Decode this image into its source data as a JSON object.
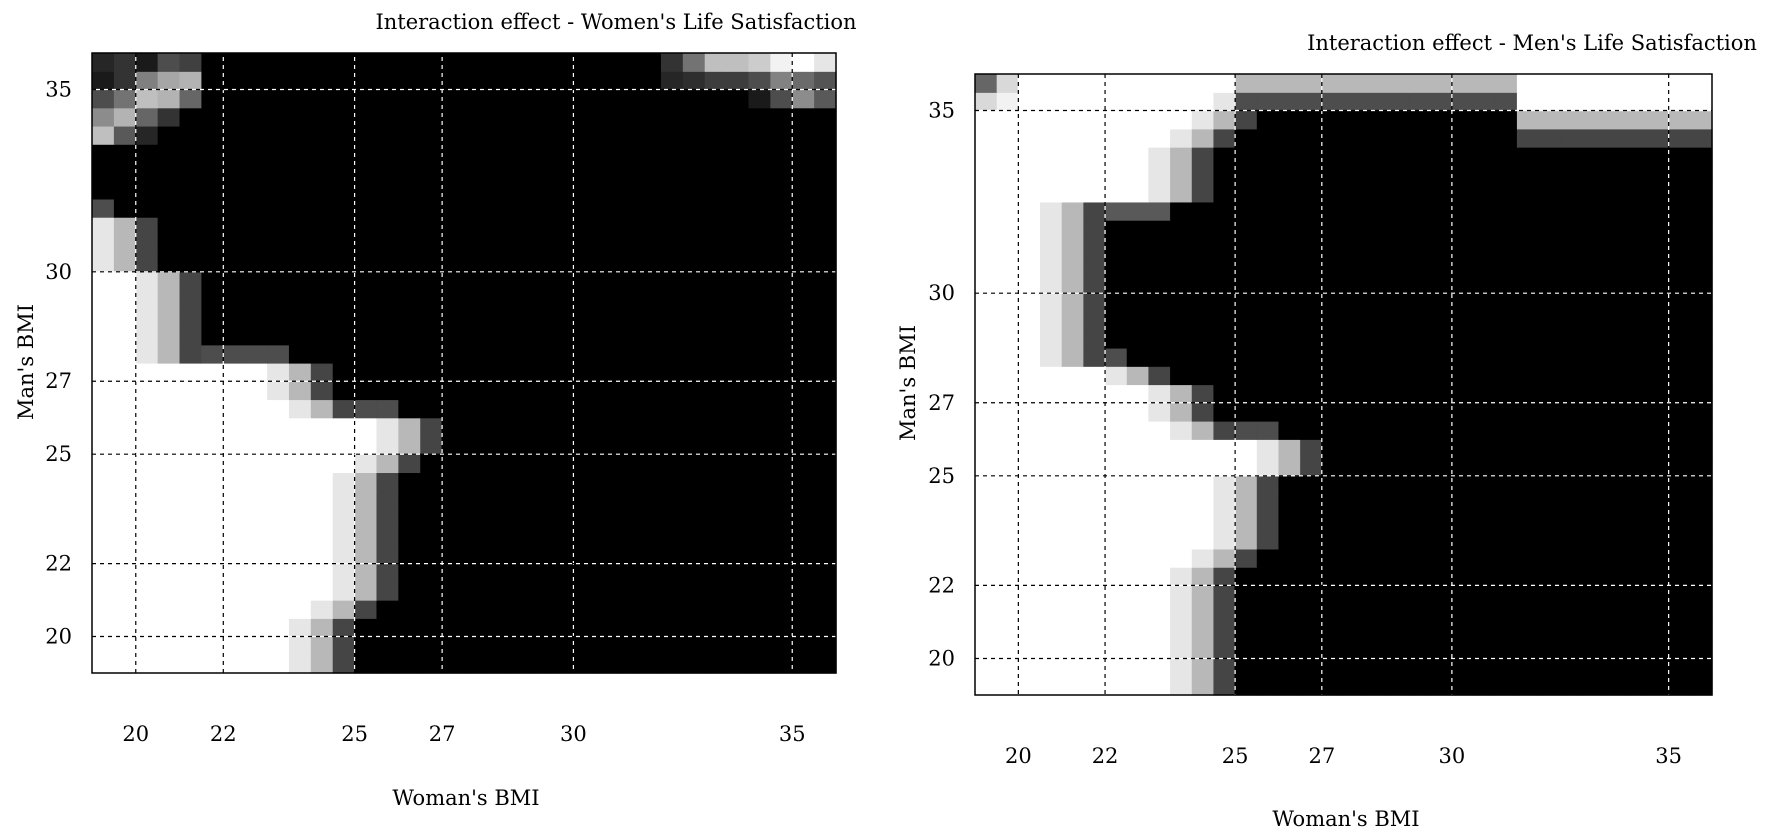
{
  "chart_data": [
    {
      "type": "heatmap",
      "title": "Interaction effect - Women's Life Satisfaction",
      "xlabel": "Woman's BMI",
      "ylabel": "Man's BMI",
      "xlim": [
        19,
        36
      ],
      "ylim": [
        19,
        36
      ],
      "xticks": [
        20,
        22,
        25,
        27,
        30,
        35
      ],
      "yticks": [
        20,
        22,
        25,
        27,
        30,
        35
      ],
      "grid": true,
      "value_scale": "grayscale 0 (black) to 1 (white)",
      "cell_size": 0.5,
      "x_cells": 34,
      "y_cells": 34,
      "white_region_boundary": [
        {
          "y_from": 19.0,
          "y_to": 20.5,
          "x_max": 24.0
        },
        {
          "y_from": 20.5,
          "y_to": 21.0,
          "x_max": 24.5
        },
        {
          "y_from": 21.0,
          "y_to": 24.5,
          "x_max": 25.0
        },
        {
          "y_from": 24.5,
          "y_to": 25.0,
          "x_max": 25.5
        },
        {
          "y_from": 25.0,
          "y_to": 26.0,
          "x_max": 26.0
        },
        {
          "y_from": 26.0,
          "y_to": 26.5,
          "x_max": 24.0
        },
        {
          "y_from": 26.5,
          "y_to": 27.5,
          "x_max": 23.5
        },
        {
          "y_from": 27.5,
          "y_to": 30.0,
          "x_max": 20.5
        },
        {
          "y_from": 30.0,
          "y_to": 31.5,
          "x_max": 19.5
        },
        {
          "y_from": 31.5,
          "y_to": 34.0,
          "x_max": 19.0
        }
      ],
      "corner_feature": "light patch near Woman's BMI 34-36, Man's BMI 35-36"
    },
    {
      "type": "heatmap",
      "title": "Interaction effect - Men's Life Satisfaction",
      "xlabel": "Woman's BMI",
      "ylabel": "Man's BMI",
      "xlim": [
        19,
        36
      ],
      "ylim": [
        19,
        36
      ],
      "xticks": [
        20,
        22,
        25,
        27,
        30,
        35
      ],
      "yticks": [
        20,
        22,
        25,
        27,
        30,
        35
      ],
      "grid": true,
      "value_scale": "grayscale 0 (black) to 1 (white)",
      "cell_size": 0.5,
      "x_cells": 34,
      "y_cells": 34,
      "white_region_boundary": [
        {
          "y_from": 19.0,
          "y_to": 22.5,
          "x_max": 24.0
        },
        {
          "y_from": 22.5,
          "y_to": 23.0,
          "x_max": 24.5
        },
        {
          "y_from": 23.0,
          "y_to": 25.0,
          "x_max": 25.0
        },
        {
          "y_from": 25.0,
          "y_to": 26.0,
          "x_max": 26.0
        },
        {
          "y_from": 26.0,
          "y_to": 26.5,
          "x_max": 24.0
        },
        {
          "y_from": 26.5,
          "y_to": 27.5,
          "x_max": 23.5
        },
        {
          "y_from": 27.5,
          "y_to": 28.0,
          "x_max": 22.5
        },
        {
          "y_from": 28.0,
          "y_to": 32.5,
          "x_max": 21.0
        },
        {
          "y_from": 32.5,
          "y_to": 34.0,
          "x_max": 23.5
        },
        {
          "y_from": 34.0,
          "y_to": 34.5,
          "x_max": 24.0
        },
        {
          "y_from": 34.5,
          "y_to": 35.0,
          "x_max": 24.5
        },
        {
          "y_from": 35.0,
          "y_to": 35.5,
          "x_max": 25.0
        },
        {
          "y_from": 35.5,
          "y_to": 36.0,
          "x_max": 36.0
        }
      ],
      "corner_feature": "light band near Man's BMI 35-36 across high Woman's BMI"
    }
  ]
}
